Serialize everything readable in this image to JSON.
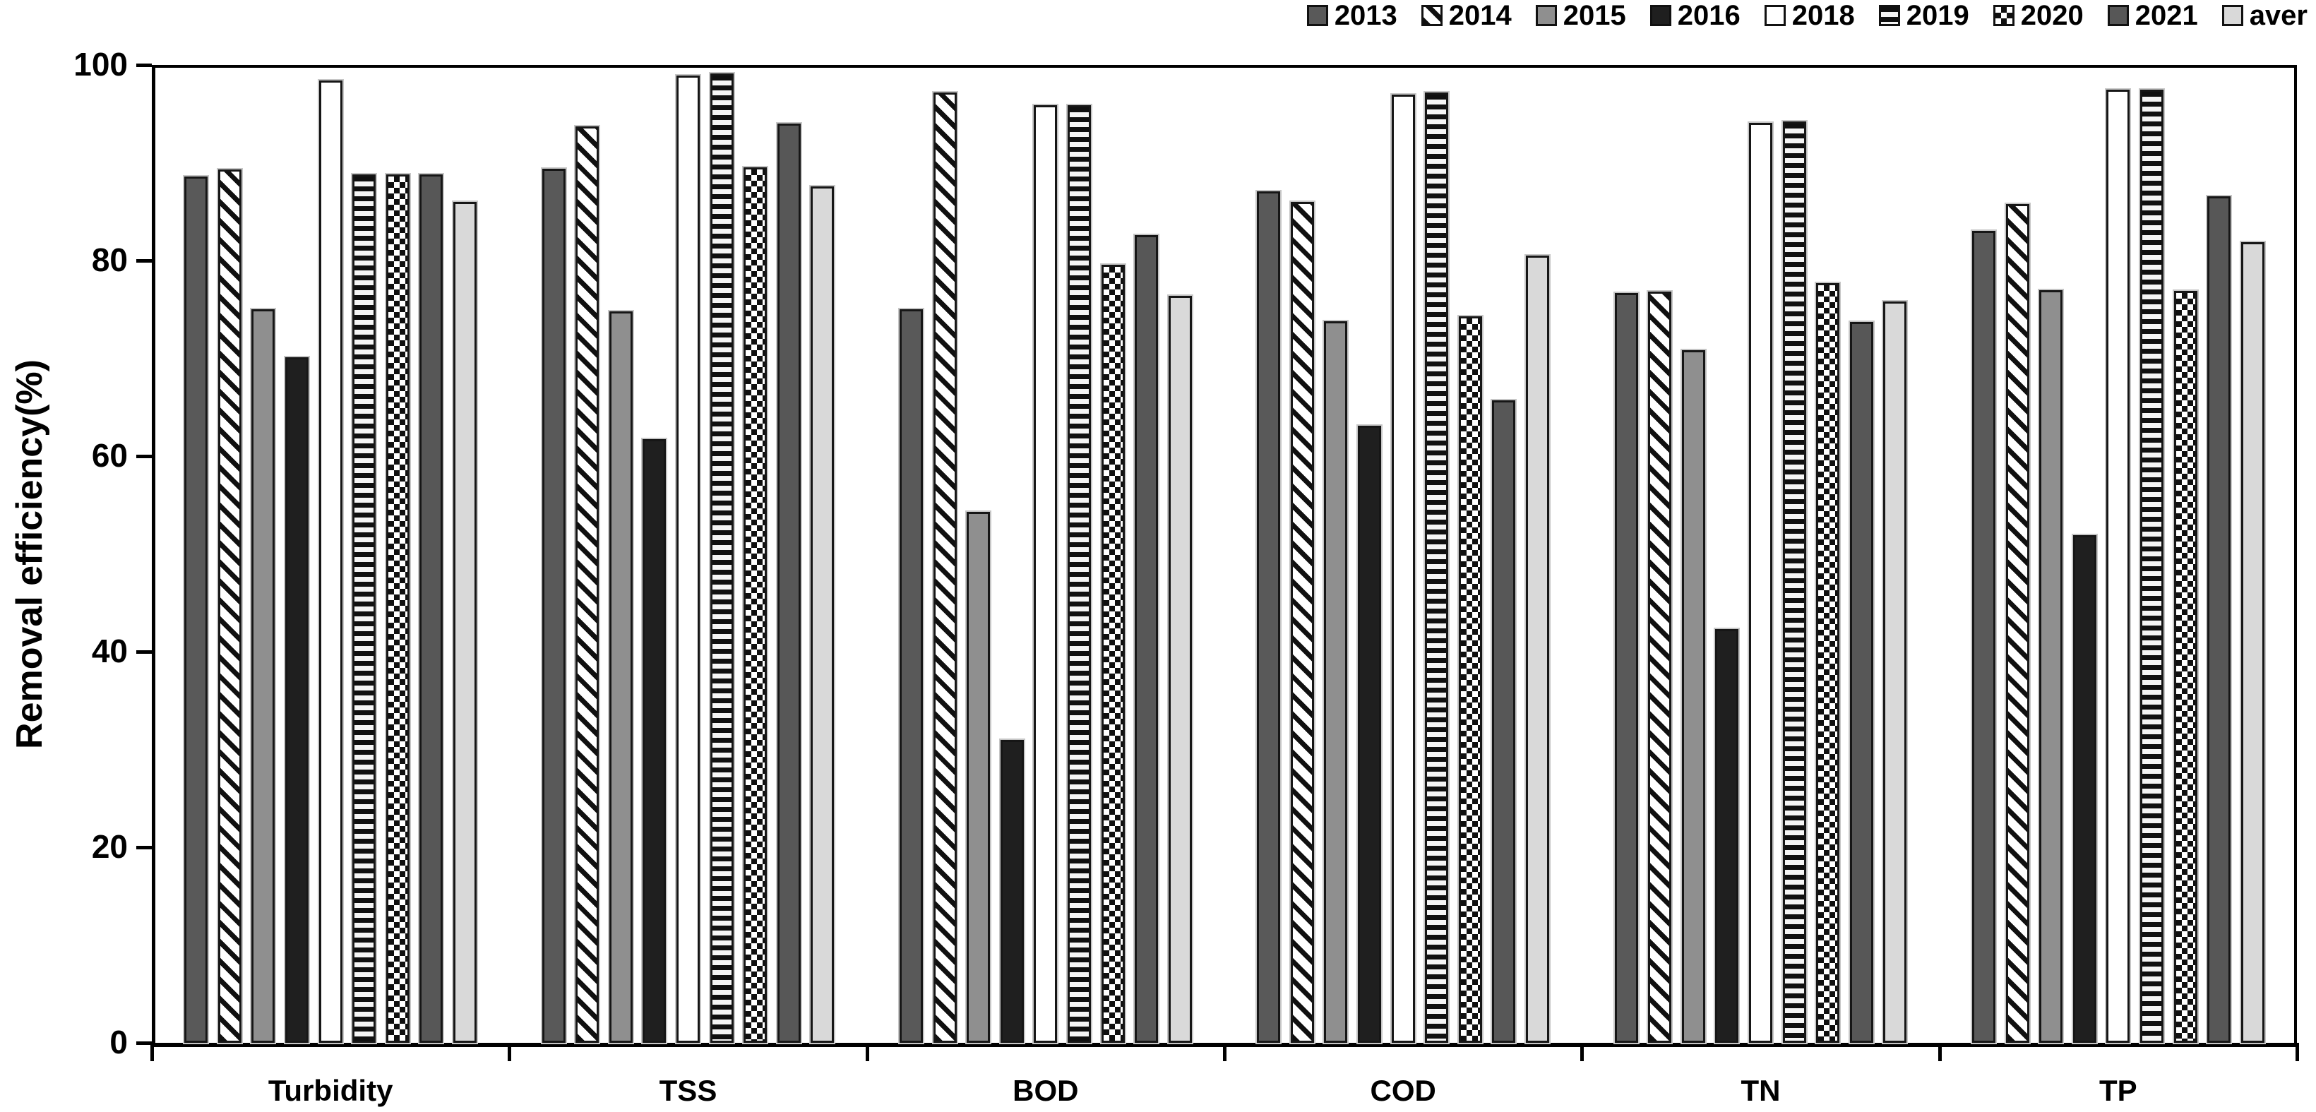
{
  "chart_data": {
    "type": "bar",
    "title": "",
    "xlabel": "",
    "ylabel": "Removal efficiency(%)",
    "ylim": [
      0,
      100
    ],
    "yticks": [
      0,
      20,
      40,
      60,
      80,
      100
    ],
    "grid": false,
    "legend_position": "top-right",
    "categories": [
      "Turbidity",
      "TSS",
      "BOD",
      "COD",
      "TN",
      "TP"
    ],
    "series": [
      {
        "name": "2013",
        "pattern": {
          "type": "solid",
          "color": "#595959"
        },
        "values": [
          88.6,
          89.4,
          75.0,
          87.1,
          76.7,
          83.0
        ]
      },
      {
        "name": "2014",
        "pattern": {
          "type": "diagonal",
          "fg": "#101010",
          "bg": "#ffffff"
        },
        "values": [
          89.3,
          93.7,
          97.2,
          86.0,
          76.8,
          85.8
        ]
      },
      {
        "name": "2015",
        "pattern": {
          "type": "solid",
          "color": "#8f8f8f"
        },
        "values": [
          75.0,
          74.8,
          54.3,
          73.8,
          70.8,
          77.0
        ]
      },
      {
        "name": "2016",
        "pattern": {
          "type": "solid",
          "color": "#1f1f1f"
        },
        "values": [
          70.1,
          61.7,
          31.0,
          63.1,
          42.3,
          51.9
        ]
      },
      {
        "name": "2018",
        "pattern": {
          "type": "solid",
          "color": "#ffffff"
        },
        "values": [
          98.4,
          98.9,
          95.9,
          97.0,
          94.1,
          97.5
        ]
      },
      {
        "name": "2019",
        "pattern": {
          "type": "hstripe",
          "fg": "#101010",
          "bg": "#f5f5f5"
        },
        "values": [
          88.8,
          99.1,
          95.9,
          97.2,
          94.2,
          97.5
        ]
      },
      {
        "name": "2020",
        "pattern": {
          "type": "checker",
          "fg": "#101010",
          "bg": "#ffffff"
        },
        "values": [
          88.8,
          89.5,
          79.6,
          74.3,
          77.7,
          76.9
        ]
      },
      {
        "name": "2021",
        "pattern": {
          "type": "solid",
          "color": "#575757"
        },
        "values": [
          88.8,
          94.0,
          82.6,
          65.7,
          73.7,
          86.6
        ]
      },
      {
        "name": "aver",
        "pattern": {
          "type": "solid",
          "color": "#d9d9d9"
        },
        "values": [
          86.0,
          87.6,
          76.4,
          80.5,
          75.8,
          81.9
        ]
      }
    ],
    "axis_color": "#000000",
    "text_color": "#000000",
    "background_color": "#ffffff"
  }
}
